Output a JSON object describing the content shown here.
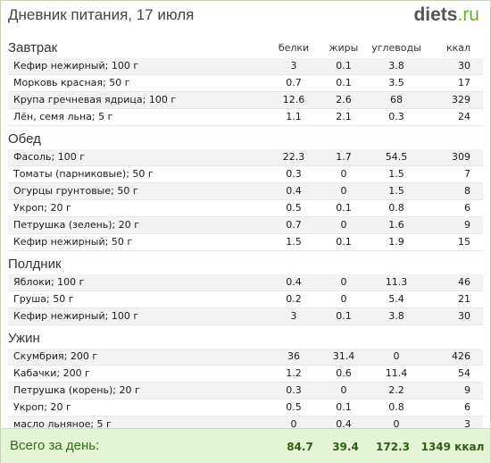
{
  "header": {
    "title": "Дневник питания, 17 июля",
    "logo_main": "diets",
    "logo_tld": ".ru"
  },
  "columns": {
    "protein": "белки",
    "fat": "жиры",
    "carbs": "углеводы",
    "kcal": "ккал"
  },
  "meals": [
    {
      "name": "Завтрак",
      "items": [
        {
          "name": "Кефир нежирный; 100 г",
          "protein": "3",
          "fat": "0.1",
          "carbs": "3.8",
          "kcal": "30"
        },
        {
          "name": "Морковь красная; 50 г",
          "protein": "0.7",
          "fat": "0.1",
          "carbs": "3.5",
          "kcal": "17"
        },
        {
          "name": "Крупа гречневая ядрица; 100 г",
          "protein": "12.6",
          "fat": "2.6",
          "carbs": "68",
          "kcal": "329"
        },
        {
          "name": "Лён, семя льна; 5 г",
          "protein": "1.1",
          "fat": "2.1",
          "carbs": "0.3",
          "kcal": "24"
        }
      ]
    },
    {
      "name": "Обед",
      "items": [
        {
          "name": "Фасоль; 100 г",
          "protein": "22.3",
          "fat": "1.7",
          "carbs": "54.5",
          "kcal": "309"
        },
        {
          "name": "Томаты (парниковые); 50 г",
          "protein": "0.3",
          "fat": "0",
          "carbs": "1.5",
          "kcal": "7"
        },
        {
          "name": "Огурцы грунтовые; 50 г",
          "protein": "0.4",
          "fat": "0",
          "carbs": "1.5",
          "kcal": "8"
        },
        {
          "name": "Укроп; 20 г",
          "protein": "0.5",
          "fat": "0.1",
          "carbs": "0.8",
          "kcal": "6"
        },
        {
          "name": "Петрушка (зелень); 20 г",
          "protein": "0.7",
          "fat": "0",
          "carbs": "1.6",
          "kcal": "9"
        },
        {
          "name": "Кефир нежирный; 50 г",
          "protein": "1.5",
          "fat": "0.1",
          "carbs": "1.9",
          "kcal": "15"
        }
      ]
    },
    {
      "name": "Полдник",
      "items": [
        {
          "name": "Яблоки; 100 г",
          "protein": "0.4",
          "fat": "0",
          "carbs": "11.3",
          "kcal": "46"
        },
        {
          "name": "Груша; 50 г",
          "protein": "0.2",
          "fat": "0",
          "carbs": "5.4",
          "kcal": "21"
        },
        {
          "name": "Кефир нежирный; 100 г",
          "protein": "3",
          "fat": "0.1",
          "carbs": "3.8",
          "kcal": "30"
        }
      ]
    },
    {
      "name": "Ужин",
      "items": [
        {
          "name": "Скумбрия; 200 г",
          "protein": "36",
          "fat": "31.4",
          "carbs": "0",
          "kcal": "426"
        },
        {
          "name": "Кабачки; 200 г",
          "protein": "1.2",
          "fat": "0.6",
          "carbs": "11.4",
          "kcal": "54"
        },
        {
          "name": "Петрушка (корень); 20 г",
          "protein": "0.3",
          "fat": "0",
          "carbs": "2.2",
          "kcal": "9"
        },
        {
          "name": "Укроп; 20 г",
          "protein": "0.5",
          "fat": "0.1",
          "carbs": "0.8",
          "kcal": "6"
        },
        {
          "name": "масло льняное; 5 г",
          "protein": "0",
          "fat": "0.4",
          "carbs": "0",
          "kcal": "3"
        }
      ]
    }
  ],
  "total": {
    "label": "Всего за день:",
    "protein": "84.7",
    "fat": "39.4",
    "carbs": "172.3",
    "kcal": "1349 ккал"
  },
  "colors": {
    "accent": "#6fae2d",
    "total_bg": "#e6f4d6",
    "total_text": "#2e5d14"
  }
}
